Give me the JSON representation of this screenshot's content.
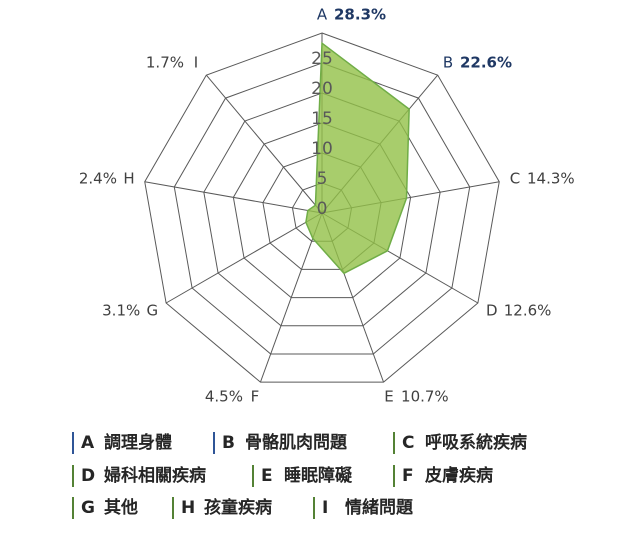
{
  "chart_data": {
    "type": "radar",
    "categories": [
      "A",
      "B",
      "C",
      "D",
      "E",
      "F",
      "G",
      "H",
      "I"
    ],
    "values": [
      28.3,
      22.6,
      14.3,
      12.6,
      10.7,
      4.5,
      3.1,
      2.4,
      1.7
    ],
    "value_labels": [
      "28.3%",
      "22.6%",
      "14.3%",
      "12.6%",
      "10.7%",
      "4.5%",
      "3.1%",
      "2.4%",
      "1.7%"
    ],
    "legend_labels": [
      "調理身體",
      "骨骼肌肉問題",
      "呼吸系統疾病",
      "婦科相關疾病",
      "睡眠障礙",
      "皮膚疾病",
      "其他",
      "孩童疾病",
      "情緒問題"
    ],
    "label_colors": [
      "#1f3864",
      "#1f3864",
      "#404040",
      "#404040",
      "#404040",
      "#404040",
      "#404040",
      "#404040",
      "#404040"
    ],
    "legend_bar_colors": [
      "#2f5597",
      "#2f5597",
      "#548235",
      "#548235",
      "#548235",
      "#548235",
      "#548235",
      "#548235",
      "#548235"
    ],
    "color": "#92c047",
    "ylim": [
      0,
      30
    ],
    "yticks": [
      0,
      5,
      10,
      15,
      20,
      25
    ]
  }
}
